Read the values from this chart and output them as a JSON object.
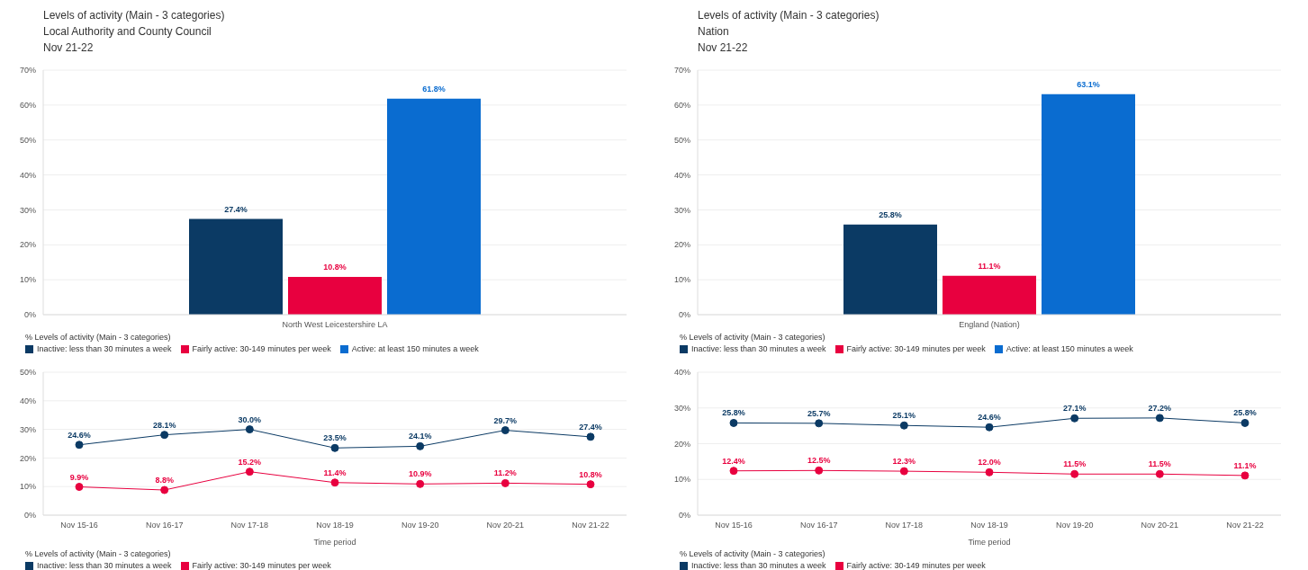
{
  "chart_data": [
    {
      "type": "bar",
      "title": "Levels of activity (Main - 3 categories)",
      "subtitle": "Local Authority and County Council\nNov 21-22",
      "categories": [
        "North West Leicestershire LA"
      ],
      "legend_title": "% Levels of activity (Main - 3 categories)",
      "legend": "bottom",
      "grid": "y",
      "ylim": [
        0,
        70
      ],
      "yticks": [
        {
          "value": 0,
          "label": "0%"
        },
        {
          "value": 10,
          "label": "10%"
        },
        {
          "value": 20,
          "label": "20%"
        },
        {
          "value": 30,
          "label": "30%"
        },
        {
          "value": 40,
          "label": "40%"
        },
        {
          "value": 50,
          "label": "50%"
        },
        {
          "value": 60,
          "label": "60%"
        },
        {
          "value": 70,
          "label": "70%"
        }
      ],
      "series": [
        {
          "name": "Inactive: less than 30 minutes a week",
          "color": "#0b3a64",
          "values": [
            27.4
          ],
          "value_labels": [
            "27.4%"
          ]
        },
        {
          "name": "Fairly active: 30-149 minutes per week",
          "color": "#e8003f",
          "values": [
            10.8
          ],
          "value_labels": [
            "10.8%"
          ]
        },
        {
          "name": "Active: at least 150 minutes a week",
          "color": "#0a6cd0",
          "values": [
            61.8
          ],
          "value_labels": [
            "61.8%"
          ]
        }
      ]
    },
    {
      "type": "bar",
      "title": "Levels of activity (Main - 3 categories)",
      "subtitle": "Nation\nNov 21-22",
      "categories": [
        "England (Nation)"
      ],
      "legend_title": "% Levels of activity (Main - 3 categories)",
      "legend": "bottom",
      "grid": "y",
      "ylim": [
        0,
        70
      ],
      "yticks": [
        {
          "value": 0,
          "label": "0%"
        },
        {
          "value": 10,
          "label": "10%"
        },
        {
          "value": 20,
          "label": "20%"
        },
        {
          "value": 30,
          "label": "30%"
        },
        {
          "value": 40,
          "label": "40%"
        },
        {
          "value": 50,
          "label": "50%"
        },
        {
          "value": 60,
          "label": "60%"
        },
        {
          "value": 70,
          "label": "70%"
        }
      ],
      "series": [
        {
          "name": "Inactive: less than 30 minutes a week",
          "color": "#0b3a64",
          "values": [
            25.8
          ],
          "value_labels": [
            "25.8%"
          ]
        },
        {
          "name": "Fairly active: 30-149 minutes per week",
          "color": "#e8003f",
          "values": [
            11.1
          ],
          "value_labels": [
            "11.1%"
          ]
        },
        {
          "name": "Active: at least 150 minutes a week",
          "color": "#0a6cd0",
          "values": [
            63.1
          ],
          "value_labels": [
            "63.1%"
          ]
        }
      ]
    },
    {
      "type": "line",
      "xlabel": "Time period",
      "categories": [
        "Nov 15-16",
        "Nov 16-17",
        "Nov 17-18",
        "Nov 18-19",
        "Nov 19-20",
        "Nov 20-21",
        "Nov 21-22"
      ],
      "legend_title": "% Levels of activity (Main - 3 categories)",
      "legend": "bottom",
      "grid": "y",
      "marker": "circle",
      "ylim": [
        0,
        50
      ],
      "yticks": [
        {
          "value": 0,
          "label": "0%"
        },
        {
          "value": 10,
          "label": "10%"
        },
        {
          "value": 20,
          "label": "20%"
        },
        {
          "value": 30,
          "label": "30%"
        },
        {
          "value": 40,
          "label": "40%"
        },
        {
          "value": 50,
          "label": "50%"
        }
      ],
      "series": [
        {
          "name": "Inactive: less than 30 minutes a week",
          "color": "#0b3a64",
          "values": [
            24.6,
            28.1,
            30.0,
            23.5,
            24.1,
            29.7,
            27.4
          ],
          "value_labels": [
            "24.6%",
            "28.1%",
            "30.0%",
            "23.5%",
            "24.1%",
            "29.7%",
            "27.4%"
          ]
        },
        {
          "name": "Fairly active: 30-149 minutes per week",
          "color": "#e8003f",
          "values": [
            9.9,
            8.8,
            15.2,
            11.4,
            10.9,
            11.2,
            10.8
          ],
          "value_labels": [
            "9.9%",
            "8.8%",
            "15.2%",
            "11.4%",
            "10.9%",
            "11.2%",
            "10.8%"
          ]
        }
      ]
    },
    {
      "type": "line",
      "xlabel": "Time period",
      "categories": [
        "Nov 15-16",
        "Nov 16-17",
        "Nov 17-18",
        "Nov 18-19",
        "Nov 19-20",
        "Nov 20-21",
        "Nov 21-22"
      ],
      "legend_title": "% Levels of activity (Main - 3 categories)",
      "legend": "bottom",
      "grid": "y",
      "marker": "circle",
      "ylim": [
        0,
        40
      ],
      "yticks": [
        {
          "value": 0,
          "label": "0%"
        },
        {
          "value": 10,
          "label": "10%"
        },
        {
          "value": 20,
          "label": "20%"
        },
        {
          "value": 30,
          "label": "30%"
        },
        {
          "value": 40,
          "label": "40%"
        }
      ],
      "series": [
        {
          "name": "Inactive: less than 30 minutes a week",
          "color": "#0b3a64",
          "values": [
            25.8,
            25.7,
            25.1,
            24.6,
            27.1,
            27.2,
            25.8
          ],
          "value_labels": [
            "25.8%",
            "25.7%",
            "25.1%",
            "24.6%",
            "27.1%",
            "27.2%",
            "25.8%"
          ]
        },
        {
          "name": "Fairly active: 30-149 minutes per week",
          "color": "#e8003f",
          "values": [
            12.4,
            12.5,
            12.3,
            12.0,
            11.5,
            11.5,
            11.1
          ],
          "value_labels": [
            "12.4%",
            "12.5%",
            "12.3%",
            "12.0%",
            "11.5%",
            "11.5%",
            "11.1%"
          ]
        }
      ]
    }
  ]
}
